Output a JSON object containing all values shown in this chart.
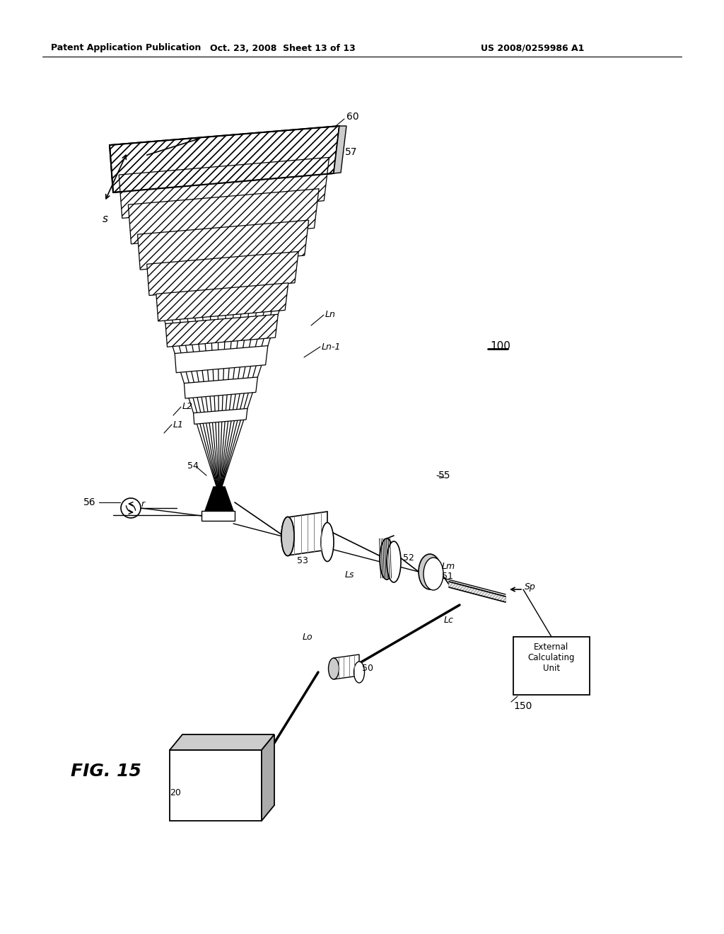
{
  "bg_color": "#ffffff",
  "header_left": "Patent Application Publication",
  "header_mid": "Oct. 23, 2008  Sheet 13 of 13",
  "header_right": "US 2008/0259986 A1",
  "fig_label": "FIG. 15",
  "line_color": "#000000",
  "gray_light": "#cccccc",
  "gray_mid": "#aaaaaa",
  "gray_dark": "#888888"
}
